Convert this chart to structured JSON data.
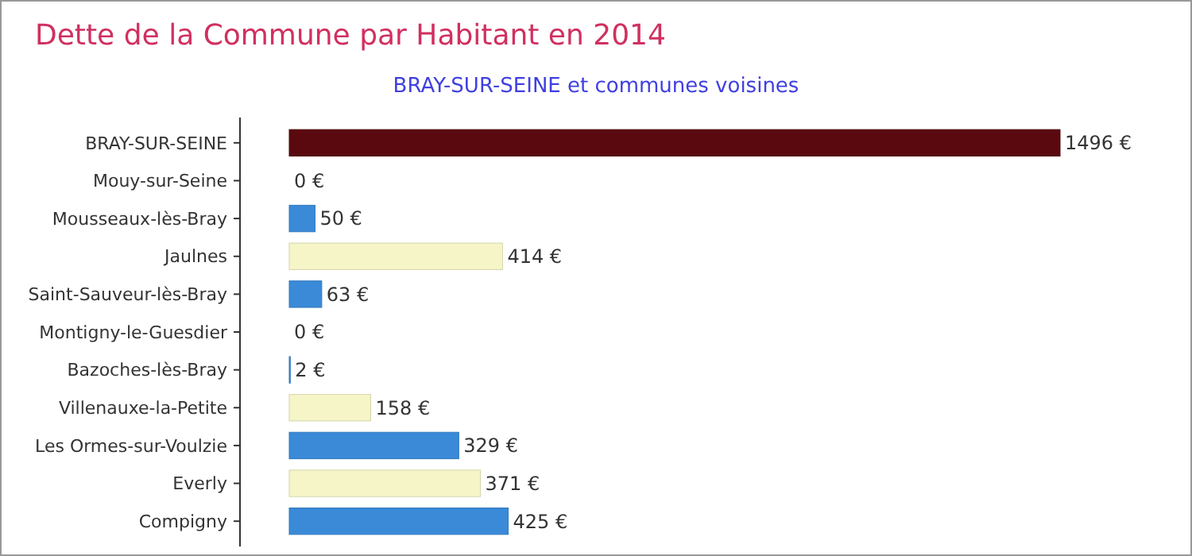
{
  "chart_data": {
    "type": "bar",
    "orientation": "horizontal",
    "title": "Dette de la Commune par Habitant en 2014",
    "subtitle": "BRAY-SUR-SEINE et communes voisines",
    "categories": [
      "BRAY-SUR-SEINE",
      "Mouy-sur-Seine",
      "Mousseaux-lès-Bray",
      "Jaulnes",
      "Saint-Sauveur-lès-Bray",
      "Montigny-le-Guesdier",
      "Bazoches-lès-Bray",
      "Villenauxe-la-Petite",
      "Les Ormes-sur-Voulzie",
      "Everly",
      "Compigny"
    ],
    "values": [
      1496,
      0,
      50,
      414,
      63,
      0,
      2,
      158,
      329,
      371,
      425
    ],
    "colors": [
      "#5a0a0e",
      "#f5f5c8",
      "#3a8ad8",
      "#f5f5c8",
      "#3a8ad8",
      "#f5f5c8",
      "#3a8ad8",
      "#f5f5c8",
      "#3a8ad8",
      "#f5f5c8",
      "#3a8ad8"
    ],
    "value_labels": [
      "1496 €",
      "0 €",
      "50 €",
      "414 €",
      "63 €",
      "0 €",
      "2 €",
      "158 €",
      "329 €",
      "371 €",
      "425 €"
    ]
  }
}
